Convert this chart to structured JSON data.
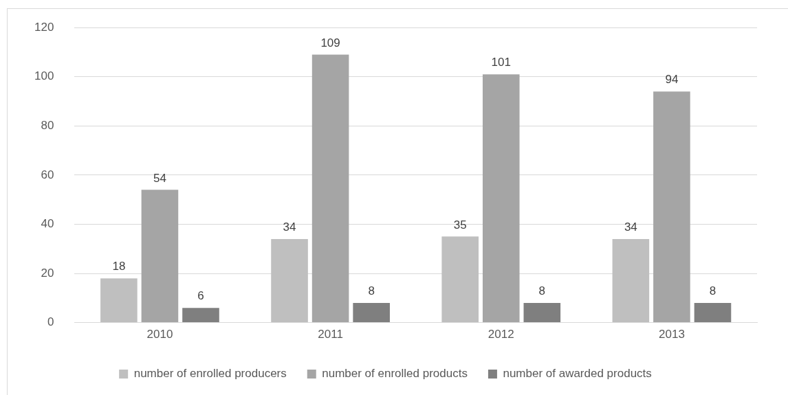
{
  "chart_data": {
    "type": "bar",
    "categories": [
      "2010",
      "2011",
      "2012",
      "2013"
    ],
    "series": [
      {
        "name": "number of enrolled producers",
        "color": "#bfbfbf",
        "values": [
          18,
          34,
          35,
          34
        ]
      },
      {
        "name": "number of enrolled products",
        "color": "#a5a5a5",
        "values": [
          54,
          109,
          101,
          94
        ]
      },
      {
        "name": "number of awarded products",
        "color": "#7f7f7f",
        "values": [
          6,
          8,
          8,
          8
        ]
      }
    ],
    "ylim": [
      0,
      120
    ],
    "yticks": [
      0,
      20,
      40,
      60,
      80,
      100,
      120
    ],
    "grid": "y",
    "legend": "bottom",
    "data_labels": true
  }
}
